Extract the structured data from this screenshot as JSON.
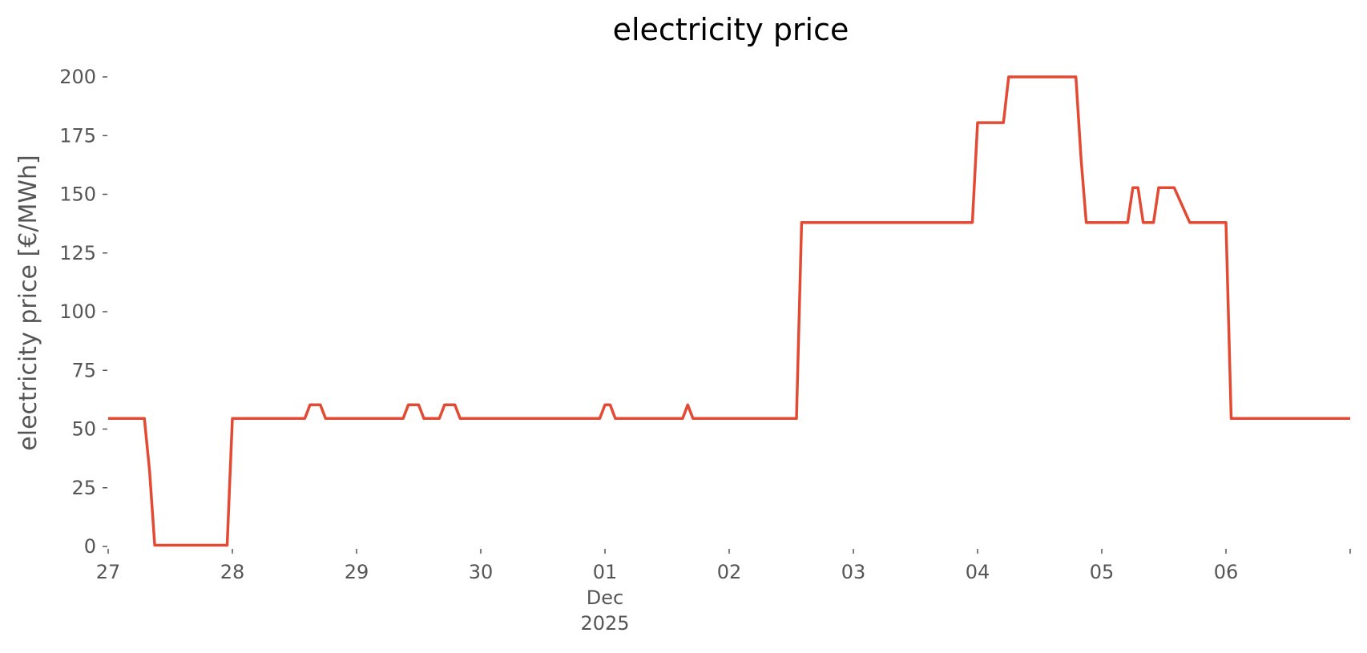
{
  "chart_data": {
    "type": "line",
    "title": "electricity price",
    "xlabel": "",
    "ylabel": "electricity price [€/MWh]",
    "ylim": [
      0,
      200
    ],
    "y_ticks": [
      0,
      25,
      50,
      75,
      100,
      125,
      150,
      175,
      200
    ],
    "xlim": [
      "2025-11-27T00:00",
      "2025-12-07T00:00"
    ],
    "x_ticks": [
      {
        "x": "2025-11-27",
        "label": "27"
      },
      {
        "x": "2025-11-28",
        "label": "28"
      },
      {
        "x": "2025-11-29",
        "label": "29"
      },
      {
        "x": "2025-11-30",
        "label": "30"
      },
      {
        "x": "2025-12-01",
        "label": "01",
        "sublabel": "Dec\n2025"
      },
      {
        "x": "2025-12-02",
        "label": "02"
      },
      {
        "x": "2025-12-03",
        "label": "03"
      },
      {
        "x": "2025-12-04",
        "label": "04"
      },
      {
        "x": "2025-12-05",
        "label": "05"
      },
      {
        "x": "2025-12-06",
        "label": "06"
      },
      {
        "x": "2025-12-07",
        "label": ""
      }
    ],
    "grid": false,
    "color": "#E24A33",
    "series": [
      {
        "x": [
          "2025-11-27T00:00",
          "2025-11-27T07:00",
          "2025-11-27T08:00",
          "2025-11-27T09:00",
          "2025-11-27T23:00",
          "2025-11-28T00:00",
          "2025-11-28T14:00",
          "2025-11-28T15:00",
          "2025-11-28T17:00",
          "2025-11-28T18:00",
          "2025-11-29T09:00",
          "2025-11-29T10:00",
          "2025-11-29T12:00",
          "2025-11-29T13:00",
          "2025-11-29T16:00",
          "2025-11-29T17:00",
          "2025-11-29T19:00",
          "2025-11-29T20:00",
          "2025-11-30T23:00",
          "2025-12-01T00:00",
          "2025-12-01T01:00",
          "2025-12-01T02:00",
          "2025-12-01T07:00",
          "2025-12-01T08:00",
          "2025-12-01T09:00",
          "2025-12-01T10:00",
          "2025-12-01T15:00",
          "2025-12-01T16:00",
          "2025-12-01T17:00",
          "2025-12-02T13:00",
          "2025-12-02T14:00",
          "2025-12-03T23:00",
          "2025-12-04T00:00",
          "2025-12-04T05:00",
          "2025-12-04T06:00",
          "2025-12-04T19:00",
          "2025-12-04T20:00",
          "2025-12-04T21:00",
          "2025-12-05T05:00",
          "2025-12-05T06:00",
          "2025-12-05T07:00",
          "2025-12-05T08:00",
          "2025-12-05T10:00",
          "2025-12-05T11:00",
          "2025-12-05T13:00",
          "2025-12-05T14:00",
          "2025-12-05T17:00",
          "2025-12-05T18:00",
          "2025-12-05T23:00",
          "2025-12-06T00:00",
          "2025-12-06T01:00",
          "2025-12-07T00:00"
        ],
        "y": [
          54.5,
          54.5,
          32,
          0.5,
          0.5,
          54.5,
          54.5,
          60.3,
          60.3,
          54.5,
          54.5,
          60.3,
          60.3,
          54.5,
          54.5,
          60.3,
          60.3,
          54.5,
          54.5,
          60.3,
          60.3,
          54.5,
          54.5,
          54.5,
          54.5,
          54.5,
          54.5,
          60.3,
          54.5,
          54.5,
          138,
          138,
          180.5,
          180.5,
          200,
          200,
          165,
          138,
          138,
          152.8,
          152.8,
          138,
          138,
          152.8,
          152.8,
          152.8,
          138,
          138,
          138,
          138,
          54.5,
          54.5
        ]
      }
    ]
  }
}
